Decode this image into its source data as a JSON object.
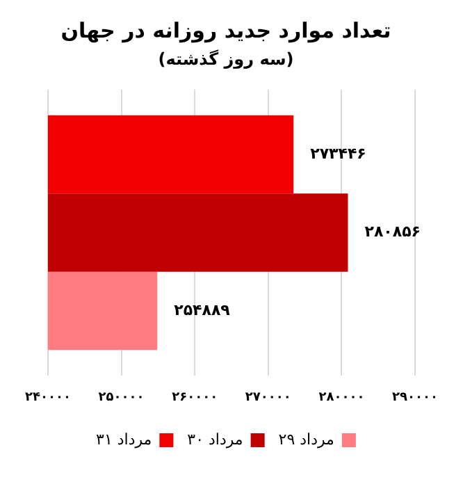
{
  "chart_data": {
    "type": "bar",
    "orientation": "horizontal",
    "title": "تعداد موارد جدید روزانه در جهان",
    "subtitle": "(سه روز گذشته)",
    "categories": [
      null
    ],
    "series": [
      {
        "name": "۳۱ مرداد",
        "color": "#f20000",
        "values": [
          273446
        ],
        "value_labels": [
          "۲۷۳۴۴۶"
        ]
      },
      {
        "name": "۳۰ مرداد",
        "color": "#c00000",
        "values": [
          280856
        ],
        "value_labels": [
          "۲۸۰۸۵۶"
        ]
      },
      {
        "name": "۲۹ مرداد",
        "color": "#ff7c80",
        "values": [
          254889
        ],
        "value_labels": [
          "۲۵۴۸۸۹"
        ]
      }
    ],
    "xlim": [
      240000,
      290000
    ],
    "xticks": [
      {
        "value": 240000,
        "label": "۲۴۰۰۰۰"
      },
      {
        "value": 250000,
        "label": "۲۵۰۰۰۰"
      },
      {
        "value": 260000,
        "label": "۲۶۰۰۰۰"
      },
      {
        "value": 270000,
        "label": "۲۷۰۰۰۰"
      },
      {
        "value": 280000,
        "label": "۲۸۰۰۰۰"
      },
      {
        "value": 290000,
        "label": "۲۹۰۰۰۰"
      }
    ],
    "grid": "x",
    "legend": "bottom"
  }
}
